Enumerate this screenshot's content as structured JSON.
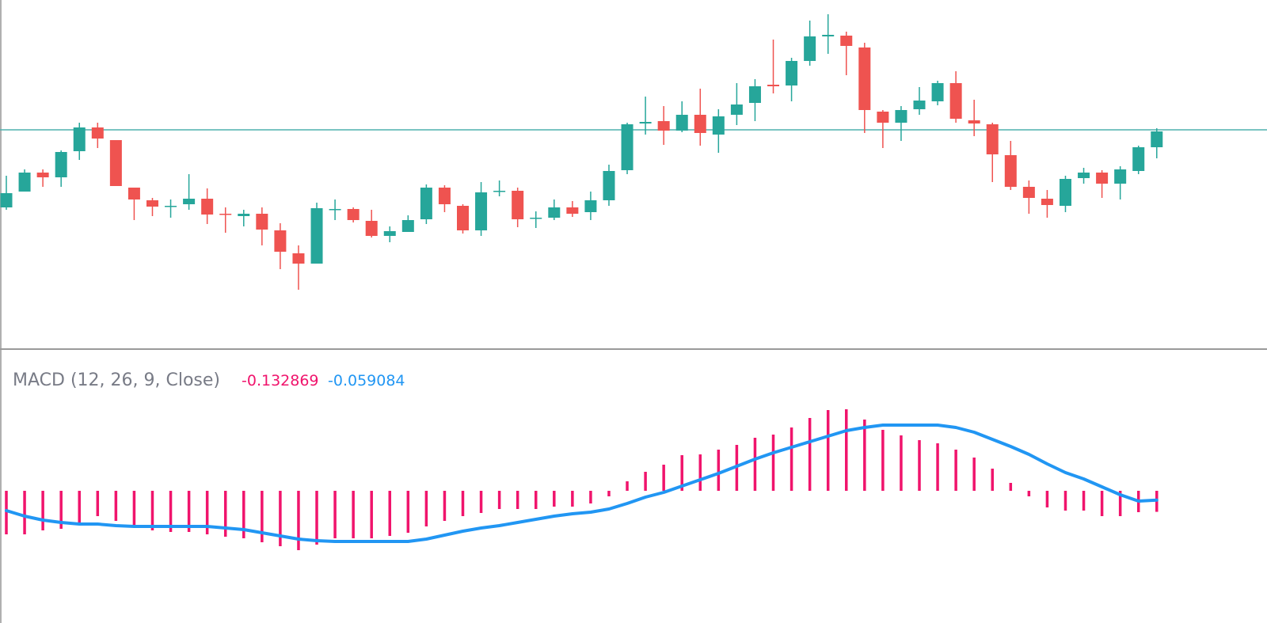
{
  "chart_data": [
    {
      "type": "candlestick",
      "open": [
        44.5,
        49.5,
        55.5,
        54,
        62.25,
        69.75,
        65.75,
        50.75,
        46.75,
        44.75,
        45.5,
        47.25,
        42.5,
        41.75,
        42.5,
        37.25,
        30,
        26.75,
        43.75,
        44,
        40.25,
        35.5,
        36.75,
        40.75,
        50.75,
        45,
        37.25,
        49.5,
        49.75,
        41,
        41.25,
        44.5,
        43,
        46.75,
        56.25,
        71,
        71.75,
        68.75,
        73.75,
        67.5,
        73.75,
        77.5,
        83.25,
        83,
        90.75,
        98.5,
        98.75,
        95,
        74.75,
        71.25,
        75.5,
        78,
        83.75,
        72,
        70.75,
        61,
        51,
        47.25,
        45,
        53.75,
        55.5,
        52,
        56,
        63.5
      ],
      "high": [
        54.5,
        56.5,
        56.5,
        62.5,
        71.25,
        71.25,
        65.75,
        50.75,
        47.5,
        47,
        55,
        50.5,
        44.5,
        43.75,
        44.5,
        39.5,
        32.5,
        46,
        47,
        44.5,
        43.75,
        38.5,
        42,
        51.75,
        51.5,
        45.5,
        52.5,
        53,
        50.75,
        43.25,
        47,
        46.5,
        49.5,
        58,
        71.25,
        79.5,
        76.5,
        78,
        82,
        75.5,
        83.75,
        85,
        97.5,
        91.75,
        103.5,
        105.5,
        100,
        96.5,
        75.25,
        76.5,
        82.5,
        84.5,
        87.5,
        78.5,
        71.25,
        65.5,
        53,
        50,
        54.5,
        57,
        56.25,
        57.5,
        64,
        69.5
      ],
      "low": [
        43.75,
        49.5,
        51,
        51,
        59.5,
        63.25,
        51.25,
        40.5,
        41.75,
        41.25,
        43.75,
        39.25,
        36.5,
        38.5,
        32.5,
        25,
        18.5,
        26.75,
        40.5,
        39.75,
        35,
        33.5,
        36.75,
        39.25,
        43,
        36.25,
        35.5,
        48,
        38.25,
        38,
        40.5,
        41.5,
        40.5,
        45,
        55,
        67.5,
        64.25,
        68.25,
        64,
        61.75,
        70.5,
        71.75,
        80.5,
        78,
        89.25,
        93,
        86.25,
        68,
        63.25,
        65.5,
        73.75,
        76.75,
        71.25,
        67,
        52.5,
        50,
        42.5,
        41.25,
        43,
        52,
        47.5,
        47,
        55,
        60
      ],
      "close": [
        49,
        55.5,
        54,
        62,
        69.75,
        66.25,
        51.25,
        47,
        44.75,
        45,
        47.25,
        42.25,
        42.25,
        42.5,
        37.5,
        30.5,
        26.75,
        44.25,
        44,
        40.5,
        35.5,
        37,
        40.5,
        50.75,
        45.5,
        37.25,
        49.25,
        49.75,
        40.75,
        41.25,
        44.5,
        42.5,
        46.75,
        56,
        70.75,
        71.5,
        68.75,
        73.75,
        68,
        73.25,
        77,
        82.75,
        82.75,
        90.75,
        98.5,
        99,
        95.5,
        75.25,
        71.25,
        75.25,
        78.25,
        83.75,
        72.5,
        71,
        61.25,
        51,
        47.5,
        45.25,
        53.5,
        55.5,
        52,
        56.5,
        63.5,
        68.5
      ],
      "up_color": "#26a69a",
      "down_color": "#ef5350",
      "ylim": [
        0,
        110
      ],
      "hline": 69,
      "hline_color": "#4fb0ae"
    },
    {
      "type": "macd",
      "title": "MACD (12, 26, 9, Close)",
      "ylim": [
        -0.8,
        0.85
      ],
      "series": [
        {
          "type": "bar",
          "color": "#f0146c",
          "values": [
            -0.275,
            -0.275,
            -0.25,
            -0.24,
            -0.2,
            -0.16,
            -0.19,
            -0.215,
            -0.25,
            -0.26,
            -0.26,
            -0.275,
            -0.29,
            -0.3,
            -0.325,
            -0.35,
            -0.375,
            -0.34,
            -0.3,
            -0.3,
            -0.3,
            -0.285,
            -0.265,
            -0.225,
            -0.19,
            -0.16,
            -0.14,
            -0.115,
            -0.115,
            -0.115,
            -0.1,
            -0.1,
            -0.08,
            -0.035,
            0.06,
            0.12,
            0.165,
            0.225,
            0.23,
            0.26,
            0.29,
            0.335,
            0.355,
            0.4,
            0.46,
            0.51,
            0.515,
            0.45,
            0.385,
            0.35,
            0.32,
            0.3,
            0.26,
            0.21,
            0.14,
            0.05,
            -0.035,
            -0.105,
            -0.125,
            -0.125,
            -0.16,
            -0.16,
            -0.135,
            -0.132869
          ]
        },
        {
          "type": "line",
          "color": "#2196f3",
          "values": [
            -0.125,
            -0.16,
            -0.185,
            -0.2,
            -0.21,
            -0.21,
            -0.22,
            -0.225,
            -0.225,
            -0.225,
            -0.225,
            -0.225,
            -0.235,
            -0.245,
            -0.265,
            -0.285,
            -0.305,
            -0.315,
            -0.32,
            -0.32,
            -0.32,
            -0.32,
            -0.32,
            -0.305,
            -0.28,
            -0.255,
            -0.235,
            -0.22,
            -0.2,
            -0.18,
            -0.16,
            -0.145,
            -0.135,
            -0.115,
            -0.08,
            -0.04,
            -0.01,
            0.03,
            0.07,
            0.11,
            0.155,
            0.2,
            0.24,
            0.275,
            0.31,
            0.345,
            0.38,
            0.4,
            0.415,
            0.415,
            0.415,
            0.415,
            0.4,
            0.37,
            0.325,
            0.28,
            0.23,
            0.17,
            0.115,
            0.075,
            0.025,
            -0.025,
            -0.065,
            -0.059084
          ]
        }
      ]
    }
  ]
}
